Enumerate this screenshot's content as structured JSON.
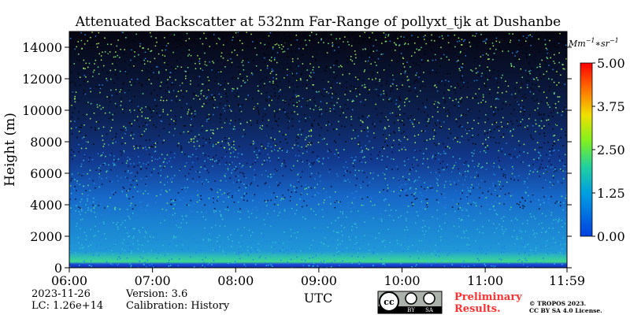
{
  "chart_data": {
    "type": "heatmap",
    "title": "Attenuated Backscatter at 532nm Far-Range of pollyxt_tjk at Dushanbe",
    "xlabel": "UTC",
    "ylabel": "Height (m)",
    "xlim": [
      6,
      11.9833
    ],
    "xticks": [
      {
        "value": 6,
        "label": "06:00"
      },
      {
        "value": 7,
        "label": "07:00"
      },
      {
        "value": 8,
        "label": "08:00"
      },
      {
        "value": 9,
        "label": "09:00"
      },
      {
        "value": 10,
        "label": "10:00"
      },
      {
        "value": 11,
        "label": "11:00"
      },
      {
        "value": 11.9833,
        "label": "11:59"
      }
    ],
    "ylim": [
      0,
      15000
    ],
    "yticks": [
      0,
      2000,
      4000,
      6000,
      8000,
      10000,
      12000,
      14000
    ],
    "colorbar": {
      "label": [
        "Mm",
        "−1",
        "∗sr",
        "−1"
      ],
      "clim": [
        0,
        5
      ],
      "ticks": [
        {
          "value": 0,
          "label": "0.00"
        },
        {
          "value": 1.25,
          "label": "1.25"
        },
        {
          "value": 2.5,
          "label": "2.50"
        },
        {
          "value": 3.75,
          "label": "3.75"
        },
        {
          "value": 5,
          "label": "5.00"
        }
      ]
    },
    "footer": {
      "date": "2023-11-26",
      "lc": "LC: 1.26e+14",
      "version": "Version: 3.6",
      "calibration": "Calibration: History",
      "preliminary": [
        "Preliminary",
        "Results."
      ],
      "copyright": "© TROPOS 2023.",
      "license": "CC BY SA 4.0 License.",
      "badge": [
        "BY",
        "SA"
      ]
    }
  }
}
